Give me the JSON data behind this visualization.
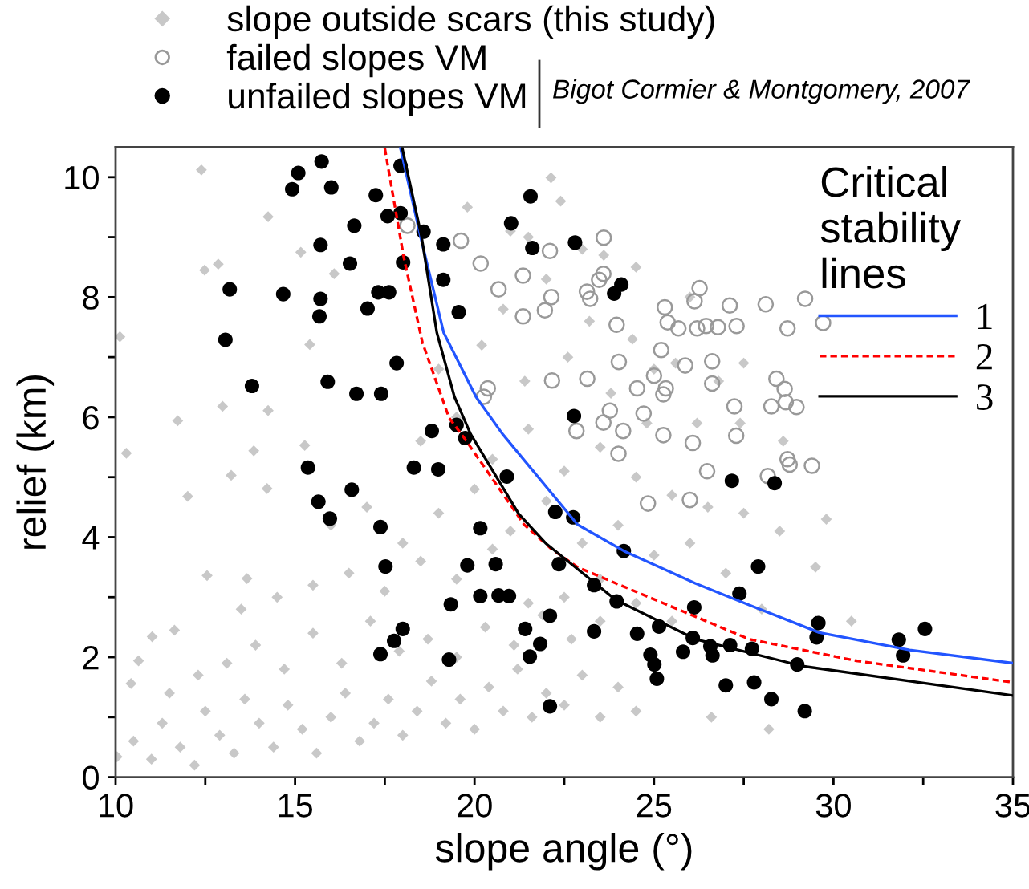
{
  "chart_data": {
    "type": "scatter",
    "xlabel": "slope angle (°)",
    "ylabel": "relief (km)",
    "legend_title": "Critical\nstability\nlines",
    "legend": "top right",
    "grid": false,
    "annotations": [
      "Bigot Cormier & Montgomery, 2007"
    ],
    "xlim": [
      10,
      35
    ],
    "ylim": [
      0,
      10.5
    ],
    "xticks": [
      10,
      {
        "value": 12.5,
        "label": null
      },
      15,
      {
        "value": 17.5,
        "label": null
      },
      20,
      {
        "value": 22.5,
        "label": null
      },
      25,
      {
        "value": 27.5,
        "label": null
      },
      30,
      {
        "value": 32.5,
        "label": null
      },
      35
    ],
    "yticks": [
      0,
      {
        "value": 1,
        "label": null
      },
      2,
      {
        "value": 3,
        "label": null
      },
      4,
      {
        "value": 5,
        "label": null
      },
      6,
      {
        "value": 7,
        "label": null
      },
      8,
      {
        "value": 9,
        "label": null
      },
      10
    ],
    "series": [
      {
        "name": "slope outside scars (this study)",
        "marker": "diamond",
        "color": "#c8c8c8",
        "x": [
          10.12,
          10.3,
          12.39,
          14.25,
          15.16,
          12.48,
          12.86,
          15.41,
          12.98,
          11.73,
          14.25,
          22.13,
          16.09,
          13.85,
          13.22,
          12.01,
          12.55,
          11.02,
          10.64,
          14.22,
          15.27,
          13.66,
          11.64,
          10.43,
          10.04,
          10.5,
          11.0,
          11.3,
          11.8,
          12.2,
          12.5,
          12.9,
          13.3,
          13.6,
          14.0,
          14.4,
          14.8,
          15.2,
          15.6,
          16.0,
          16.4,
          16.8,
          17.2,
          17.6,
          18.0,
          18.4,
          18.8,
          19.2,
          19.6,
          20.0,
          20.4,
          20.8,
          21.2,
          21.6,
          22.0,
          22.5,
          23.0,
          23.5,
          24.0,
          24.5,
          11.5,
          12.3,
          13.1,
          13.9,
          14.7,
          15.5,
          16.3,
          17.1,
          17.9,
          18.7,
          19.5,
          20.3,
          21.1,
          21.9,
          22.7,
          23.5,
          13.5,
          14.5,
          15.5,
          16.5,
          17.5,
          18.5,
          19.5,
          20.5,
          21.5,
          22.5,
          23.5,
          24.5,
          25.5,
          16.0,
          17.0,
          18.0,
          19.0,
          20.0,
          21.0,
          22.0,
          23.0,
          24.0,
          25.0,
          26.0,
          27.0,
          28.0,
          18.5,
          19.5,
          20.5,
          21.5,
          22.5,
          23.5,
          24.5,
          25.5,
          26.5,
          27.5,
          28.5,
          29.5,
          30.5,
          19.0,
          20.2,
          21.4,
          22.6,
          23.8,
          25.0,
          26.2,
          27.4,
          28.6,
          29.8,
          20.8,
          22.0,
          23.2,
          24.4,
          25.6,
          26.8,
          21.5,
          23.0,
          24.5,
          26.0,
          27.5,
          19.8,
          21.0,
          22.4,
          23.6,
          24.8,
          26.6,
          28.2
        ],
        "values": [
          7.34,
          5.4,
          10.12,
          9.34,
          8.75,
          8.45,
          8.55,
          7.21,
          6.18,
          5.94,
          6.11,
          9.99,
          8.39,
          5.44,
          5.03,
          4.68,
          3.36,
          2.34,
          1.94,
          4.81,
          5.53,
          3.31,
          2.45,
          1.56,
          0.34,
          0.6,
          0.3,
          0.9,
          0.5,
          0.2,
          1.1,
          0.7,
          0.4,
          1.3,
          0.9,
          0.5,
          1.2,
          0.8,
          0.4,
          1.0,
          1.4,
          0.6,
          0.9,
          1.3,
          0.7,
          1.1,
          1.6,
          0.9,
          1.3,
          0.8,
          1.5,
          1.1,
          1.8,
          1.0,
          1.4,
          1.2,
          1.7,
          1.0,
          1.5,
          1.1,
          1.4,
          1.7,
          1.9,
          2.2,
          1.8,
          2.4,
          1.9,
          2.6,
          2.1,
          2.3,
          2.0,
          2.5,
          2.2,
          2.7,
          2.3,
          2.6,
          2.8,
          3.0,
          3.2,
          3.4,
          3.1,
          3.6,
          3.3,
          3.8,
          2.9,
          3.0,
          3.3,
          2.9,
          2.6,
          4.2,
          4.5,
          3.9,
          4.4,
          4.8,
          4.1,
          4.6,
          3.9,
          4.2,
          3.7,
          3.9,
          3.4,
          2.8,
          5.6,
          6.0,
          5.3,
          5.8,
          5.1,
          5.5,
          5.0,
          4.7,
          4.5,
          4.4,
          4.1,
          3.5,
          2.6,
          6.8,
          7.2,
          6.6,
          7.0,
          6.4,
          6.8,
          5.9,
          5.9,
          5.6,
          4.3,
          7.8,
          8.3,
          7.6,
          7.3,
          6.9,
          6.6,
          9.0,
          8.8,
          8.5,
          8.0,
          6.9,
          9.5,
          9.1,
          9.6,
          8.7,
          5.9,
          1.0,
          0.8
        ]
      },
      {
        "name": "failed slopes VM",
        "marker": "circle",
        "color": "#999999",
        "x": [
          23.6,
          22.1,
          18.13,
          19.62,
          20.17,
          20.67,
          21.35,
          22.14,
          21.96,
          21.35,
          22.16,
          20.37,
          20.26,
          23.59,
          23.47,
          23.13,
          23.22,
          23.96,
          24.02,
          23.14,
          24.53,
          25.0,
          25.33,
          25.26,
          24.71,
          23.77,
          23.59,
          24.14,
          22.84,
          25.26,
          26.08,
          27.29,
          25.3,
          25.38,
          25.68,
          26.13,
          26.27,
          26.2,
          26.45,
          26.78,
          27.11,
          27.3,
          25.2,
          25.87,
          26.62,
          26.62,
          27.24,
          28.11,
          28.72,
          29.21,
          29.71,
          28.41,
          28.64,
          28.67,
          28.27,
          28.97,
          24.01,
          24.83,
          26.0,
          26.48,
          28.17,
          28.72,
          28.78,
          29.4
        ],
        "values": [
          8.99,
          8.77,
          9.19,
          8.94,
          8.56,
          8.13,
          8.36,
          8.0,
          7.78,
          7.68,
          6.61,
          6.48,
          6.34,
          8.39,
          8.29,
          8.09,
          7.97,
          7.54,
          6.92,
          6.64,
          6.48,
          6.69,
          6.48,
          6.38,
          6.06,
          6.11,
          5.91,
          5.77,
          5.77,
          5.7,
          5.57,
          5.69,
          7.83,
          7.58,
          7.48,
          7.93,
          8.15,
          7.48,
          7.52,
          7.5,
          7.86,
          7.52,
          7.12,
          6.86,
          6.93,
          6.56,
          6.18,
          7.88,
          7.48,
          7.97,
          7.57,
          6.64,
          6.47,
          6.25,
          6.18,
          6.17,
          5.39,
          4.56,
          4.62,
          5.1,
          5.02,
          5.3,
          5.21,
          5.19
        ]
      },
      {
        "name": "unfailed slopes VM",
        "marker": "circle",
        "color": "#000000",
        "x": [
          15.74,
          15.09,
          14.92,
          16.01,
          17.94,
          17.25,
          17.58,
          17.94,
          16.65,
          18.58,
          15.71,
          19.13,
          16.53,
          18.01,
          13.18,
          14.67,
          15.71,
          15.68,
          17.02,
          17.32,
          17.62,
          19.13,
          19.56,
          13.06,
          13.8,
          15.91,
          16.71,
          17.4,
          17.83,
          18.81,
          19.5,
          19.74,
          21.56,
          21.02,
          21.61,
          22.8,
          22.77,
          24.09,
          23.89,
          15.36,
          18.31,
          18.99,
          16.58,
          15.65,
          15.97,
          17.38,
          20.16,
          20.9,
          22.25,
          22.75,
          17.52,
          19.8,
          20.59,
          22.35,
          19.34,
          20.16,
          20.67,
          20.96,
          18.0,
          17.76,
          17.38,
          19.29,
          21.41,
          21.83,
          21.54,
          22.1,
          22.1,
          24.16,
          23.33,
          23.96,
          23.33,
          24.53,
          25.14,
          26.12,
          26.08,
          25.81,
          24.9,
          25.01,
          25.08,
          26.57,
          26.63,
          27.12,
          27.0,
          27.73,
          27.79,
          28.27,
          28.99,
          29.2,
          27.38,
          27.9,
          27.17,
          28.36,
          29.58,
          29.53,
          31.82,
          31.94,
          32.55
        ],
        "values": [
          10.26,
          10.07,
          9.8,
          9.83,
          10.19,
          9.7,
          9.35,
          9.4,
          9.19,
          9.09,
          8.87,
          8.88,
          8.56,
          8.58,
          8.13,
          8.05,
          7.97,
          7.68,
          7.81,
          8.08,
          8.08,
          8.29,
          7.75,
          7.29,
          6.52,
          6.59,
          6.39,
          6.39,
          6.9,
          5.77,
          5.87,
          5.65,
          9.68,
          9.23,
          8.82,
          8.91,
          6.02,
          8.21,
          8.06,
          5.16,
          5.16,
          5.13,
          4.79,
          4.59,
          4.31,
          4.17,
          4.15,
          5.01,
          4.42,
          4.33,
          3.51,
          3.53,
          3.55,
          3.55,
          2.88,
          3.02,
          3.03,
          3.02,
          2.47,
          2.27,
          2.05,
          1.96,
          2.47,
          2.22,
          2.01,
          2.69,
          1.18,
          3.77,
          3.2,
          2.93,
          2.43,
          2.39,
          2.51,
          2.83,
          2.32,
          2.09,
          2.04,
          1.88,
          1.64,
          2.18,
          2.03,
          2.2,
          1.53,
          2.14,
          1.58,
          1.3,
          1.88,
          1.1,
          3.06,
          3.51,
          4.94,
          4.9,
          2.57,
          2.33,
          2.29,
          2.03,
          2.47
        ]
      },
      {
        "name": "1",
        "type": "line",
        "line_style": "solid",
        "color": "#2255ff",
        "x": [
          17.93,
          18.5,
          19.14,
          20.04,
          20.78,
          22.87,
          24.16,
          26.15,
          27.65,
          29.6,
          32.12,
          35
        ],
        "values": [
          10.5,
          9.0,
          7.41,
          6.34,
          5.72,
          4.21,
          3.77,
          3.23,
          2.87,
          2.41,
          2.12,
          1.9
        ]
      },
      {
        "name": "2",
        "type": "line",
        "line_style": "dashed",
        "color": "#ff0000",
        "x": [
          17.5,
          18.03,
          18.55,
          19.29,
          19.74,
          21.38,
          22.13,
          22.87,
          24.66,
          27.65,
          30.63,
          35
        ],
        "values": [
          10.48,
          8.66,
          7.24,
          5.99,
          5.63,
          4.21,
          3.81,
          3.5,
          3.05,
          2.3,
          1.94,
          1.58
        ]
      },
      {
        "name": "3",
        "type": "line",
        "line_style": "solid",
        "color": "#000000",
        "x": [
          17.98,
          18.52,
          18.95,
          19.44,
          19.89,
          21.23,
          21.98,
          23.92,
          26.15,
          29.14,
          35
        ],
        "values": [
          10.5,
          9.02,
          7.41,
          6.34,
          5.72,
          4.39,
          3.9,
          2.96,
          2.3,
          1.85,
          1.36
        ]
      }
    ]
  }
}
